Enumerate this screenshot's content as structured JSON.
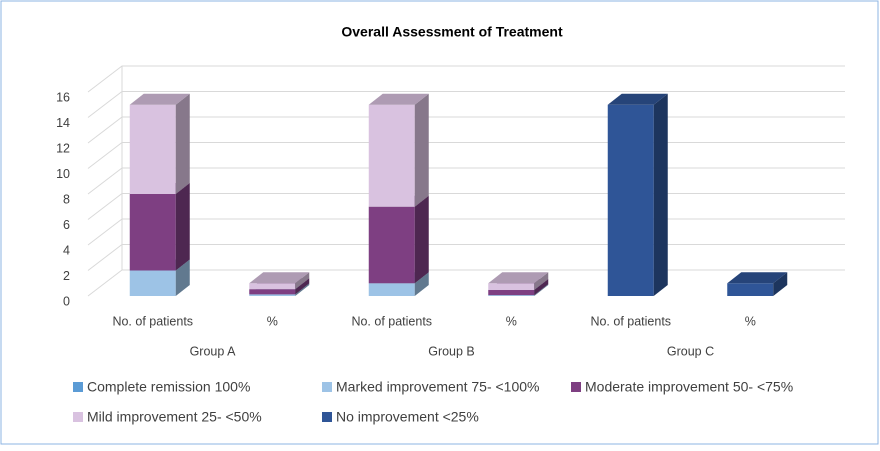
{
  "chart_data": {
    "type": "bar3d_stacked",
    "title": "Overall Assessment of Treatment",
    "categories": [
      "No. of patients",
      "%",
      "No. of patients",
      "%",
      "No. of patients",
      "%"
    ],
    "groups": [
      "Group A",
      "Group B",
      "Group C"
    ],
    "series": [
      {
        "name": "Complete remission 100%",
        "color": "#5b9bd5",
        "values": [
          0,
          0,
          0,
          0,
          0,
          0
        ]
      },
      {
        "name": "Marked improvement 75- <100%",
        "color": "#9dc3e6",
        "values": [
          2,
          0.13,
          1,
          0.07,
          0,
          0
        ]
      },
      {
        "name": "Moderate improvement 50- <75%",
        "color": "#7e3f82",
        "values": [
          6,
          0.4,
          6,
          0.4,
          0,
          0
        ]
      },
      {
        "name": "Mild improvement 25- <50%",
        "color": "#d9c2e0",
        "values": [
          7,
          0.47,
          8,
          0.53,
          0,
          0
        ]
      },
      {
        "name": "No improvement <25%",
        "color": "#2f5597",
        "values": [
          0,
          0,
          0,
          0,
          15,
          1
        ]
      }
    ],
    "ylim": [
      0,
      16
    ],
    "yticks": [
      0,
      2,
      4,
      6,
      8,
      10,
      12,
      14,
      16
    ],
    "grid": true,
    "legend": "bottom"
  }
}
